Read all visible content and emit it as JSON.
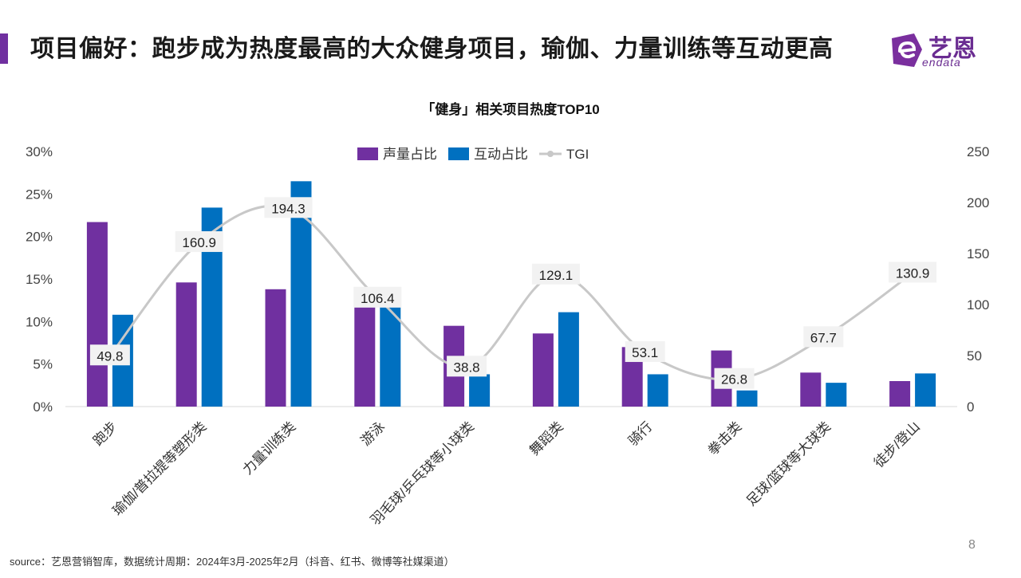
{
  "header": {
    "title": "项目偏好：跑步成为热度最高的大众健身项目，瑜伽、力量训练等互动更高",
    "logo_cn": "艺恩",
    "logo_en": "endata"
  },
  "footer": {
    "source": "source：艺恩营销智库，数据统计周期：2024年3月-2025年2月（抖音、红书、微博等社媒渠道）",
    "page_number": "8"
  },
  "colors": {
    "accent": "#7030a0",
    "voice": "#7030a0",
    "interaction": "#0070c0",
    "tgi": "#c8c8c8"
  },
  "chart_data": {
    "type": "bar",
    "title": "「健身」相关项目热度TOP10",
    "categories": [
      "跑步",
      "瑜伽/普拉提等塑形类",
      "力量训练类",
      "游泳",
      "羽毛球/乒乓球等小球类",
      "舞蹈类",
      "骑行",
      "拳击类",
      "足球/篮球等大球类",
      "徒步/登山"
    ],
    "series": [
      {
        "name": "声量占比",
        "type": "bar",
        "axis": "left",
        "values": [
          21.7,
          14.6,
          13.8,
          12.3,
          9.5,
          8.6,
          7.0,
          6.6,
          4.0,
          3.0
        ]
      },
      {
        "name": "互动占比",
        "type": "bar",
        "axis": "left",
        "values": [
          10.8,
          23.4,
          26.5,
          13.2,
          3.8,
          11.1,
          3.8,
          1.9,
          2.8,
          3.9
        ]
      },
      {
        "name": "TGI",
        "type": "line",
        "axis": "right",
        "smooth": true,
        "values": [
          49.8,
          160.9,
          194.3,
          106.4,
          38.8,
          129.1,
          53.1,
          26.8,
          67.7,
          130.9
        ]
      }
    ],
    "y_left": {
      "ticks": [
        "0%",
        "5%",
        "10%",
        "15%",
        "20%",
        "25%",
        "30%"
      ],
      "range": [
        0,
        30
      ]
    },
    "y_right": {
      "ticks": [
        "0",
        "50",
        "100",
        "150",
        "200",
        "250"
      ],
      "range": [
        0,
        250
      ]
    },
    "legend_position": "top-center",
    "grid": false
  }
}
